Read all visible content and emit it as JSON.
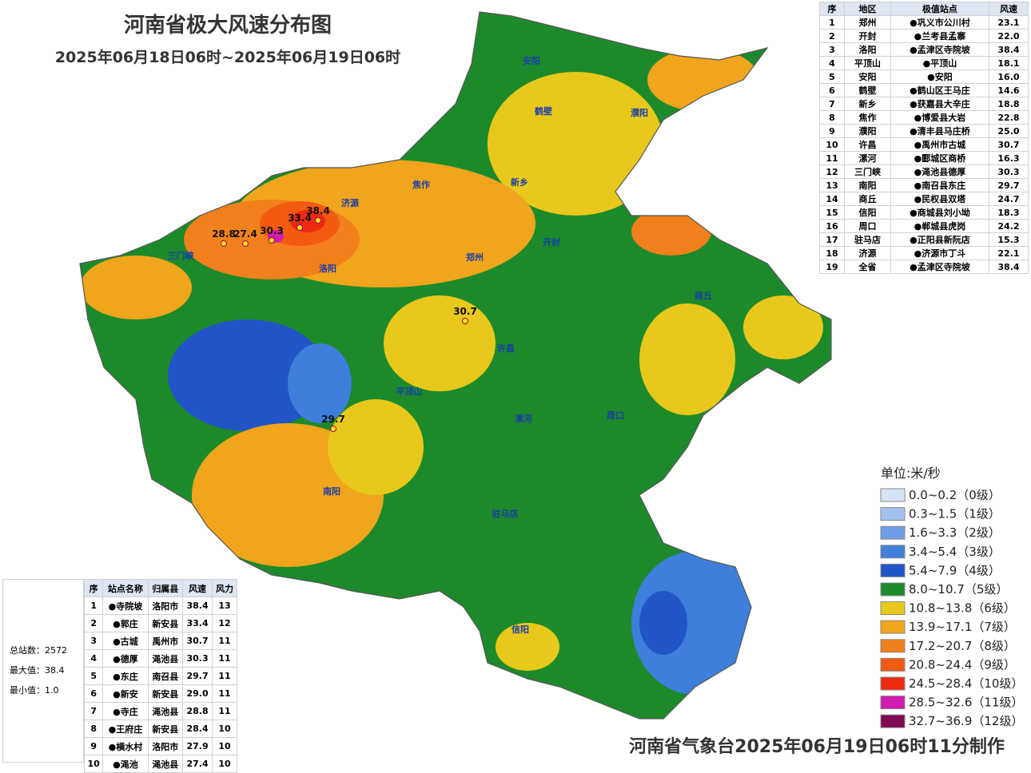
{
  "header": {
    "title": "河南省极大风速分布图",
    "subtitle": "2025年06月18日06时~2025年06月19日06时"
  },
  "region_table": {
    "columns": [
      "序",
      "地区",
      "极值站点",
      "风速"
    ],
    "rows": [
      [
        "1",
        "郑州",
        "●巩义市公川村",
        "23.1"
      ],
      [
        "2",
        "开封",
        "●兰考县孟寨",
        "22.0"
      ],
      [
        "3",
        "洛阳",
        "●孟津区寺院坡",
        "38.4"
      ],
      [
        "4",
        "平顶山",
        "●平顶山",
        "18.1"
      ],
      [
        "5",
        "安阳",
        "●安阳",
        "16.0"
      ],
      [
        "6",
        "鹤壁",
        "●鹤山区王马庄",
        "14.6"
      ],
      [
        "7",
        "新乡",
        "●获嘉县大辛庄",
        "18.8"
      ],
      [
        "8",
        "焦作",
        "●博爱县大岩",
        "22.8"
      ],
      [
        "9",
        "濮阳",
        "●清丰县马庄桥",
        "25.0"
      ],
      [
        "10",
        "许昌",
        "●禹州市古城",
        "30.7"
      ],
      [
        "11",
        "漯河",
        "●郾城区商桥",
        "16.3"
      ],
      [
        "12",
        "三门峡",
        "●渑池县德厚",
        "30.3"
      ],
      [
        "13",
        "南阳",
        "●南召县东庄",
        "29.7"
      ],
      [
        "14",
        "商丘",
        "●民权县双塔",
        "24.7"
      ],
      [
        "15",
        "信阳",
        "●商城县刘小坳",
        "18.3"
      ],
      [
        "16",
        "周口",
        "●郸城县虎岗",
        "24.2"
      ],
      [
        "17",
        "驻马店",
        "●正阳县新阮店",
        "15.3"
      ],
      [
        "18",
        "济源",
        "●济源市丁斗",
        "22.1"
      ],
      [
        "19",
        "全省",
        "●孟津区寺院坡",
        "38.4"
      ]
    ]
  },
  "station_table": {
    "columns": [
      "序",
      "站点名称",
      "归属县",
      "风速",
      "风力"
    ],
    "rows": [
      [
        "1",
        "●寺院坡",
        "洛阳市",
        "38.4",
        "13"
      ],
      [
        "2",
        "●郭庄",
        "新安县",
        "33.4",
        "12"
      ],
      [
        "3",
        "●古城",
        "禹州市",
        "30.7",
        "11"
      ],
      [
        "4",
        "●德厚",
        "渑池县",
        "30.3",
        "11"
      ],
      [
        "5",
        "●东庄",
        "南召县",
        "29.7",
        "11"
      ],
      [
        "6",
        "●新安",
        "新安县",
        "29.0",
        "11"
      ],
      [
        "7",
        "●寺庄",
        "渑池县",
        "28.8",
        "11"
      ],
      [
        "8",
        "●王府庄",
        "新安县",
        "28.4",
        "10"
      ],
      [
        "9",
        "●横水村",
        "洛阳市",
        "27.9",
        "10"
      ],
      [
        "10",
        "●渑池",
        "渑池县",
        "27.4",
        "10"
      ]
    ]
  },
  "stats": [
    "总站数：2572",
    "最大值：38.4",
    "最小值：1.0"
  ],
  "legend": {
    "unit": "单位:米/秒",
    "items": [
      {
        "label": "0.0~0.2（0级）",
        "color": "#d6e4f7"
      },
      {
        "label": "0.3~1.5（1级）",
        "color": "#a4c2ee"
      },
      {
        "label": "1.6~3.3（2级）",
        "color": "#6e9ee6"
      },
      {
        "label": "3.4~5.4（3级）",
        "color": "#3f7fdc"
      },
      {
        "label": "5.4~7.9（4级）",
        "color": "#2155c8"
      },
      {
        "label": "8.0~10.7（5级）",
        "color": "#1c8a2a"
      },
      {
        "label": "10.8~13.8（6级）",
        "color": "#e8c81a"
      },
      {
        "label": "13.9~17.1（7级）",
        "color": "#f0a51c"
      },
      {
        "label": "17.2~20.7（8级）",
        "color": "#f2801c"
      },
      {
        "label": "20.8~24.4（9级）",
        "color": "#f25a12"
      },
      {
        "label": "24.5~28.4（10级）",
        "color": "#ee2a10"
      },
      {
        "label": "28.5~32.6（11级）",
        "color": "#d21bb0"
      },
      {
        "label": "32.7~36.9（12级）",
        "color": "#820a55"
      }
    ]
  },
  "map": {
    "cities": [
      "安阳",
      "鹤壁",
      "濮阳",
      "新乡",
      "焦作",
      "济源",
      "郑州",
      "开封",
      "洛阳",
      "三门峡",
      "商丘",
      "许昌",
      "平顶山",
      "漯河",
      "周口",
      "南阳",
      "驻马店",
      "信阳"
    ],
    "highlights": [
      "38.4",
      "33.4",
      "30.7",
      "30.3",
      "29.7",
      "28.8",
      "27.4"
    ]
  },
  "footer": "河南省气象台2025年06月19日06时11分制作"
}
